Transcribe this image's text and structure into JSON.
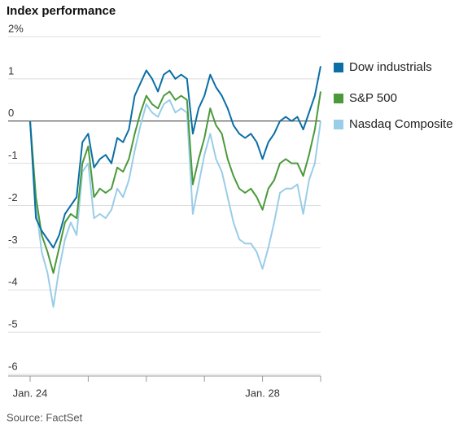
{
  "chart_data": {
    "type": "line",
    "title": "Index performance",
    "source": "Source: FactSet",
    "x": [
      0,
      0.1,
      0.2,
      0.3,
      0.4,
      0.5,
      0.6,
      0.7,
      0.8,
      0.9,
      1.0,
      1.1,
      1.2,
      1.3,
      1.4,
      1.5,
      1.6,
      1.7,
      1.8,
      1.9,
      2.0,
      2.1,
      2.2,
      2.3,
      2.4,
      2.5,
      2.6,
      2.7,
      2.8,
      2.9,
      3.0,
      3.1,
      3.2,
      3.3,
      3.4,
      3.5,
      3.6,
      3.7,
      3.8,
      3.9,
      4.0,
      4.1,
      4.2,
      4.3,
      4.4,
      4.5,
      4.6,
      4.7,
      4.8,
      4.9,
      5.0
    ],
    "xlim": [
      0,
      5
    ],
    "xticks": [
      0,
      1,
      2,
      3,
      4,
      5
    ],
    "xtick_labels": [
      "Jan. 24",
      null,
      null,
      null,
      "Jan. 28",
      null
    ],
    "ylim": [
      -6,
      2
    ],
    "yticks": [
      {
        "value": 2,
        "label": "2%"
      },
      1,
      0,
      -1,
      -2,
      -3,
      -4,
      -5,
      -6
    ],
    "grid": true,
    "series": [
      {
        "name": "Dow industrials",
        "color": "#0a6fa5",
        "values": [
          0,
          -2.3,
          -2.6,
          -2.8,
          -3.0,
          -2.7,
          -2.2,
          -2.0,
          -1.8,
          -0.5,
          -0.3,
          -1.1,
          -0.9,
          -0.8,
          -1.0,
          -0.4,
          -0.5,
          -0.2,
          0.6,
          0.9,
          1.2,
          1.0,
          0.7,
          1.1,
          1.2,
          1.0,
          1.1,
          1.0,
          -0.3,
          0.3,
          0.6,
          1.1,
          0.8,
          0.6,
          0.3,
          -0.1,
          -0.3,
          -0.4,
          -0.3,
          -0.5,
          -0.9,
          -0.5,
          -0.3,
          0.0,
          0.1,
          0.0,
          0.1,
          -0.2,
          0.2,
          0.6,
          1.3
        ]
      },
      {
        "name": "S&P 500",
        "color": "#4a9a3a",
        "values": [
          0,
          -1.8,
          -2.7,
          -3.1,
          -3.6,
          -3.0,
          -2.4,
          -2.2,
          -2.3,
          -1.0,
          -0.6,
          -1.8,
          -1.6,
          -1.7,
          -1.6,
          -1.1,
          -1.2,
          -0.9,
          -0.3,
          0.2,
          0.6,
          0.4,
          0.3,
          0.6,
          0.7,
          0.5,
          0.6,
          0.5,
          -1.5,
          -0.9,
          -0.4,
          0.3,
          -0.1,
          -0.3,
          -0.9,
          -1.3,
          -1.6,
          -1.7,
          -1.6,
          -1.8,
          -2.1,
          -1.6,
          -1.4,
          -1.0,
          -0.9,
          -1.0,
          -1.0,
          -1.3,
          -0.8,
          -0.2,
          0.7
        ]
      },
      {
        "name": "Nasdaq Composite",
        "color": "#9acde8",
        "values": [
          0,
          -2.0,
          -3.1,
          -3.6,
          -4.4,
          -3.5,
          -2.8,
          -2.4,
          -2.7,
          -1.2,
          -1.0,
          -2.3,
          -2.2,
          -2.3,
          -2.1,
          -1.6,
          -1.8,
          -1.4,
          -0.7,
          -0.1,
          0.4,
          0.2,
          0.1,
          0.4,
          0.5,
          0.2,
          0.3,
          0.2,
          -2.2,
          -1.5,
          -0.8,
          -0.3,
          -0.9,
          -1.2,
          -1.8,
          -2.4,
          -2.8,
          -2.9,
          -2.9,
          -3.1,
          -3.5,
          -3.0,
          -2.4,
          -1.7,
          -1.6,
          -1.6,
          -1.5,
          -2.2,
          -1.4,
          -1.0,
          0.0
        ]
      }
    ]
  }
}
